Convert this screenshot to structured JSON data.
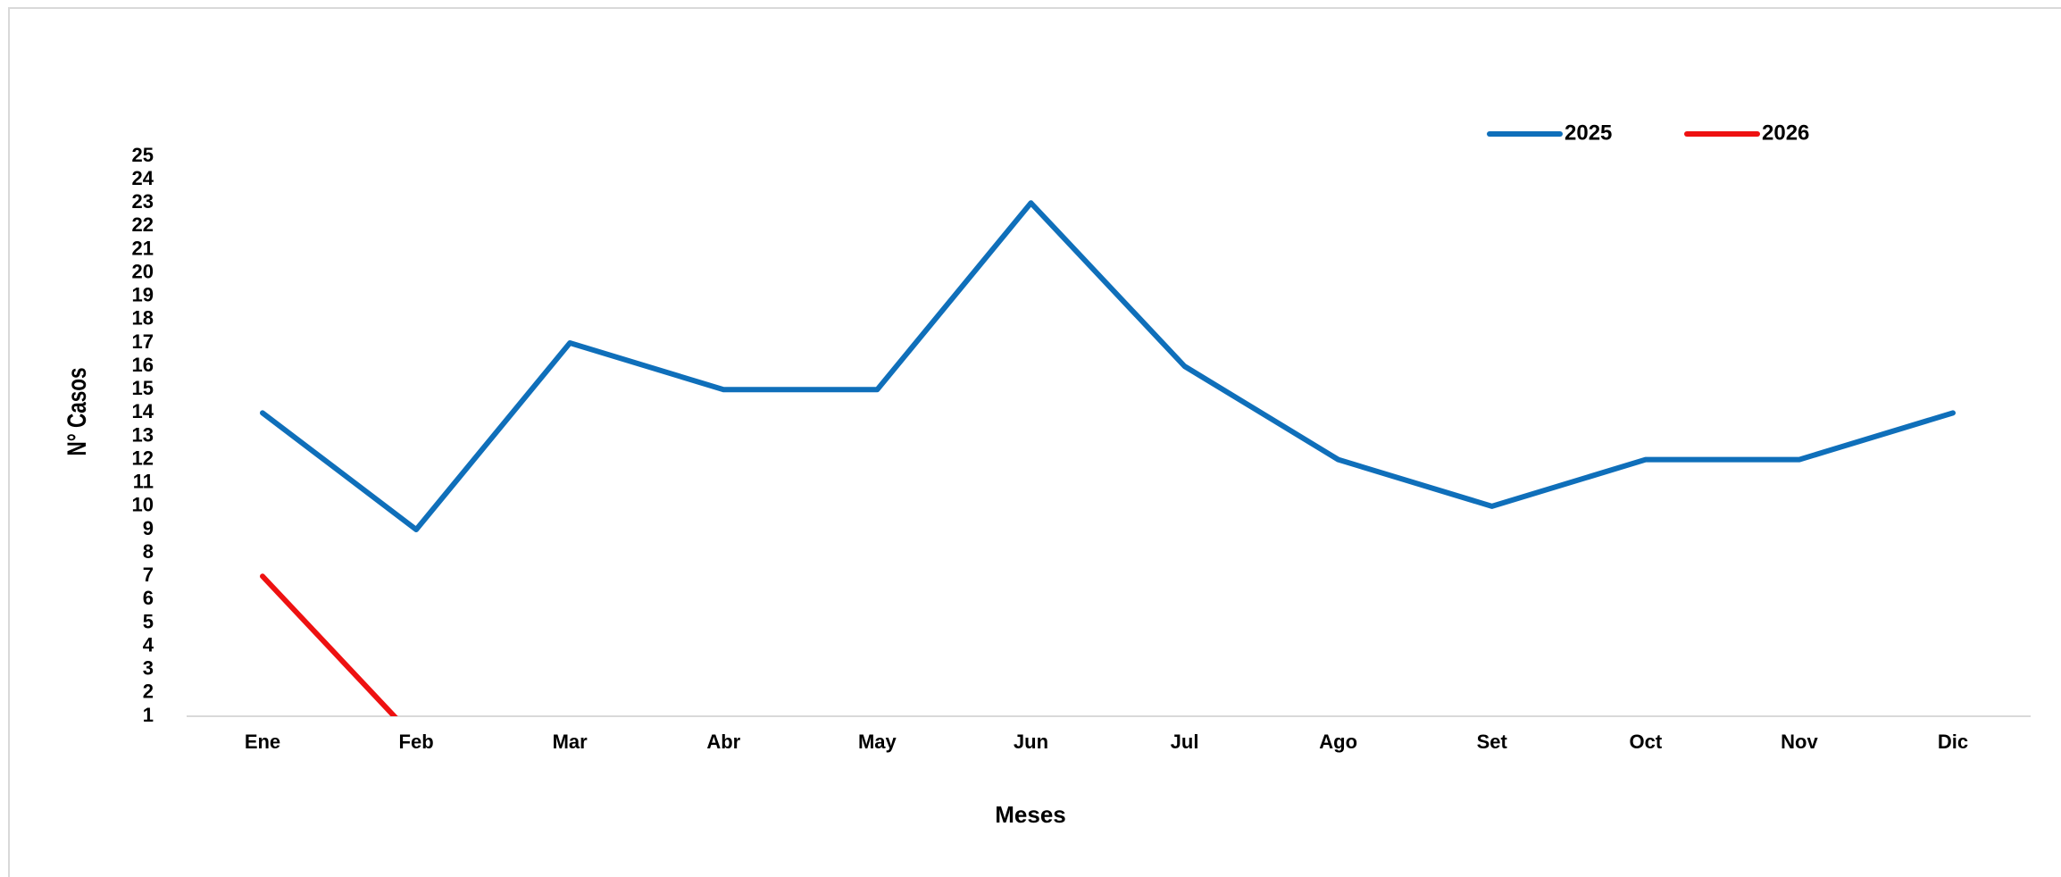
{
  "chart_data": {
    "type": "line",
    "categories": [
      "Ene",
      "Feb",
      "Mar",
      "Abr",
      "May",
      "Jun",
      "Jul",
      "Ago",
      "Set",
      "Oct",
      "Nov",
      "Dic"
    ],
    "series": [
      {
        "name": "2025",
        "color": "#0f6fba",
        "values": [
          14,
          9,
          17,
          15,
          15,
          23,
          16,
          12,
          10,
          12,
          12,
          14
        ]
      },
      {
        "name": "2026",
        "color": "#ee1111",
        "values": [
          7,
          0,
          null,
          null,
          null,
          null,
          null,
          null,
          null,
          null,
          null,
          null
        ]
      }
    ],
    "ylim": [
      1,
      25
    ],
    "yticks": [
      1,
      2,
      3,
      4,
      5,
      6,
      7,
      8,
      9,
      10,
      11,
      12,
      13,
      14,
      15,
      16,
      17,
      18,
      19,
      20,
      21,
      22,
      23,
      24,
      25
    ],
    "xlabel": "Meses",
    "ylabel": "N° Casos",
    "legend": "top-right",
    "grid": false
  }
}
